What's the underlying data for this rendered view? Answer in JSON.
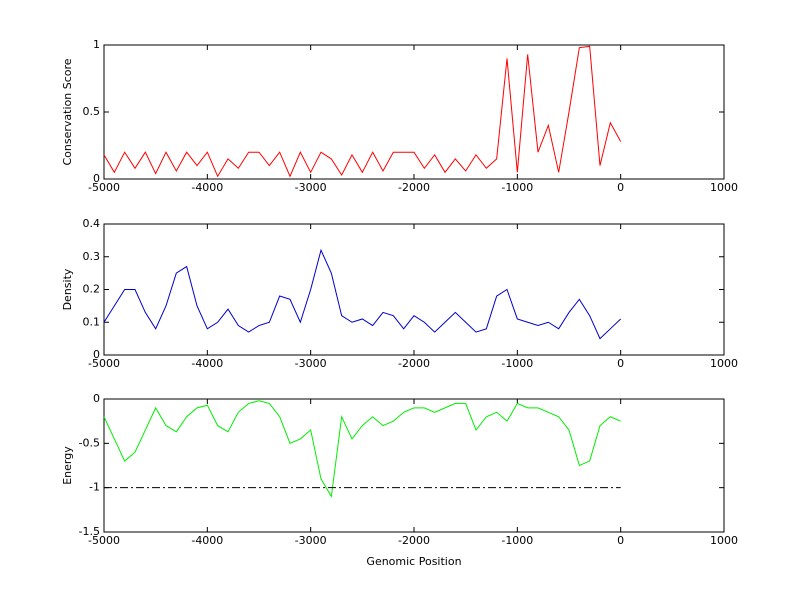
{
  "chart_data": [
    {
      "type": "line",
      "ylabel": "Conservation Score",
      "xlim": [
        -5000,
        1000
      ],
      "xticks": [
        -5000,
        -4000,
        -3000,
        -2000,
        -1000,
        0,
        1000
      ],
      "ylim": [
        0,
        1
      ],
      "yticks": [
        0,
        0.5,
        1
      ],
      "x": [
        -5000,
        -4900,
        -4800,
        -4700,
        -4600,
        -4500,
        -4400,
        -4300,
        -4200,
        -4100,
        -4000,
        -3900,
        -3800,
        -3700,
        -3600,
        -3500,
        -3400,
        -3300,
        -3200,
        -3100,
        -3000,
        -2900,
        -2800,
        -2700,
        -2600,
        -2500,
        -2400,
        -2300,
        -2200,
        -2100,
        -2000,
        -1900,
        -1800,
        -1700,
        -1600,
        -1500,
        -1400,
        -1300,
        -1200,
        -1100,
        -1000,
        -900,
        -800,
        -700,
        -600,
        -500,
        -400,
        -300,
        -200,
        -100,
        0
      ],
      "series": [
        {
          "color": "#ff0000",
          "values": [
            0.18,
            0.05,
            0.2,
            0.08,
            0.2,
            0.04,
            0.2,
            0.06,
            0.2,
            0.1,
            0.2,
            0.02,
            0.15,
            0.08,
            0.2,
            0.2,
            0.1,
            0.2,
            0.02,
            0.2,
            0.05,
            0.2,
            0.15,
            0.03,
            0.18,
            0.05,
            0.2,
            0.06,
            0.2,
            0.2,
            0.2,
            0.08,
            0.18,
            0.05,
            0.15,
            0.06,
            0.18,
            0.08,
            0.15,
            0.9,
            0.05,
            0.93,
            0.2,
            0.4,
            0.05,
            0.5,
            0.98,
            0.99,
            0.1,
            0.42,
            0.28
          ]
        }
      ]
    },
    {
      "type": "line",
      "ylabel": "Density",
      "xlim": [
        -5000,
        1000
      ],
      "xticks": [
        -5000,
        -4000,
        -3000,
        -2000,
        -1000,
        0,
        1000
      ],
      "ylim": [
        0,
        0.4
      ],
      "yticks": [
        0,
        0.1,
        0.2,
        0.3,
        0.4
      ],
      "x": [
        -5000,
        -4900,
        -4800,
        -4700,
        -4600,
        -4500,
        -4400,
        -4300,
        -4200,
        -4100,
        -4000,
        -3900,
        -3800,
        -3700,
        -3600,
        -3500,
        -3400,
        -3300,
        -3200,
        -3100,
        -3000,
        -2900,
        -2800,
        -2700,
        -2600,
        -2500,
        -2400,
        -2300,
        -2200,
        -2100,
        -2000,
        -1900,
        -1800,
        -1700,
        -1600,
        -1500,
        -1400,
        -1300,
        -1200,
        -1100,
        -1000,
        -900,
        -800,
        -700,
        -600,
        -500,
        -400,
        -300,
        -200,
        -100,
        0
      ],
      "series": [
        {
          "color": "#0000cc",
          "values": [
            0.1,
            0.15,
            0.2,
            0.2,
            0.13,
            0.08,
            0.15,
            0.25,
            0.27,
            0.15,
            0.08,
            0.1,
            0.14,
            0.09,
            0.07,
            0.09,
            0.1,
            0.18,
            0.17,
            0.1,
            0.2,
            0.32,
            0.25,
            0.12,
            0.1,
            0.11,
            0.09,
            0.13,
            0.12,
            0.08,
            0.12,
            0.1,
            0.07,
            0.1,
            0.13,
            0.1,
            0.07,
            0.08,
            0.18,
            0.2,
            0.11,
            0.1,
            0.09,
            0.1,
            0.08,
            0.13,
            0.17,
            0.12,
            0.05,
            0.08,
            0.11
          ]
        }
      ]
    },
    {
      "type": "line",
      "ylabel": "Energy",
      "xlabel": "Genomic Position",
      "xlim": [
        -5000,
        1000
      ],
      "xticks": [
        -5000,
        -4000,
        -3000,
        -2000,
        -1000,
        0,
        1000
      ],
      "ylim": [
        -1.5,
        0
      ],
      "yticks": [
        -1.5,
        -1,
        -0.5,
        0
      ],
      "x": [
        -5000,
        -4900,
        -4800,
        -4700,
        -4600,
        -4500,
        -4400,
        -4300,
        -4200,
        -4100,
        -4000,
        -3900,
        -3800,
        -3700,
        -3600,
        -3500,
        -3400,
        -3300,
        -3200,
        -3100,
        -3000,
        -2900,
        -2800,
        -2700,
        -2600,
        -2500,
        -2400,
        -2300,
        -2200,
        -2100,
        -2000,
        -1900,
        -1800,
        -1700,
        -1600,
        -1500,
        -1400,
        -1300,
        -1200,
        -1100,
        -1000,
        -900,
        -800,
        -700,
        -600,
        -500,
        -400,
        -300,
        -200,
        -100,
        0
      ],
      "series": [
        {
          "color": "#00ee00",
          "values": [
            -0.2,
            -0.45,
            -0.7,
            -0.6,
            -0.35,
            -0.1,
            -0.3,
            -0.37,
            -0.2,
            -0.1,
            -0.07,
            -0.3,
            -0.37,
            -0.15,
            -0.05,
            -0.02,
            -0.05,
            -0.2,
            -0.5,
            -0.45,
            -0.35,
            -0.9,
            -1.1,
            -0.2,
            -0.45,
            -0.3,
            -0.2,
            -0.3,
            -0.25,
            -0.15,
            -0.1,
            -0.1,
            -0.15,
            -0.1,
            -0.05,
            -0.05,
            -0.35,
            -0.2,
            -0.15,
            -0.25,
            -0.05,
            -0.1,
            -0.1,
            -0.15,
            -0.2,
            -0.35,
            -0.75,
            -0.7,
            -0.3,
            -0.2,
            -0.25
          ]
        },
        {
          "color": "#000000",
          "dash": "dash-dot",
          "x": [
            -5000,
            0
          ],
          "values": [
            -1,
            -1
          ]
        }
      ]
    }
  ]
}
